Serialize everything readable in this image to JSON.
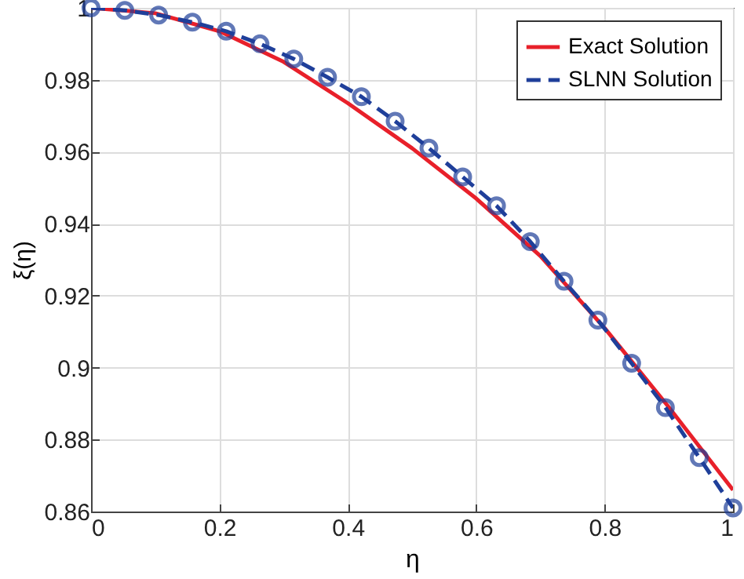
{
  "chart_data": {
    "type": "line",
    "xlabel": "η",
    "ylabel": "ξ(η)",
    "xlim": [
      0,
      1
    ],
    "ylim": [
      0.86,
      1
    ],
    "xticks": [
      0,
      0.2,
      0.4,
      0.6,
      0.8,
      1
    ],
    "yticks": [
      0.86,
      0.88,
      {
        "value": 0.9,
        "label": "0.9"
      },
      0.92,
      0.94,
      0.96,
      0.98,
      {
        "value": 1,
        "label": "1"
      }
    ],
    "grid": true,
    "legend": "top right",
    "series": [
      {
        "name": "Exact Solution",
        "color": "#e8202a",
        "line_style": "solid",
        "marker": "none",
        "x": [
          0,
          0.1,
          0.2,
          0.3,
          0.4,
          0.5,
          0.6,
          0.7,
          0.8,
          0.9,
          1
        ],
        "values": [
          1,
          0.9985,
          0.9935,
          0.985,
          0.9735,
          0.961,
          0.947,
          0.931,
          0.911,
          0.889,
          0.866
        ]
      },
      {
        "name": "SLNN Solution",
        "color": "#1f3f9a",
        "line_style": "dashed",
        "marker": "circle",
        "x": [
          0,
          0.0526,
          0.1053,
          0.1579,
          0.2105,
          0.2632,
          0.3158,
          0.3684,
          0.4211,
          0.4737,
          0.5263,
          0.5789,
          0.6316,
          0.6842,
          0.7368,
          0.7895,
          0.8421,
          0.8947,
          0.9474,
          1
        ],
        "values": [
          1,
          0.9993,
          0.998,
          0.996,
          0.9935,
          0.99,
          0.9858,
          0.9807,
          0.9753,
          0.9685,
          0.961,
          0.953,
          0.945,
          0.935,
          0.924,
          0.9132,
          0.9012,
          0.8889,
          0.875,
          0.861
        ]
      }
    ]
  }
}
